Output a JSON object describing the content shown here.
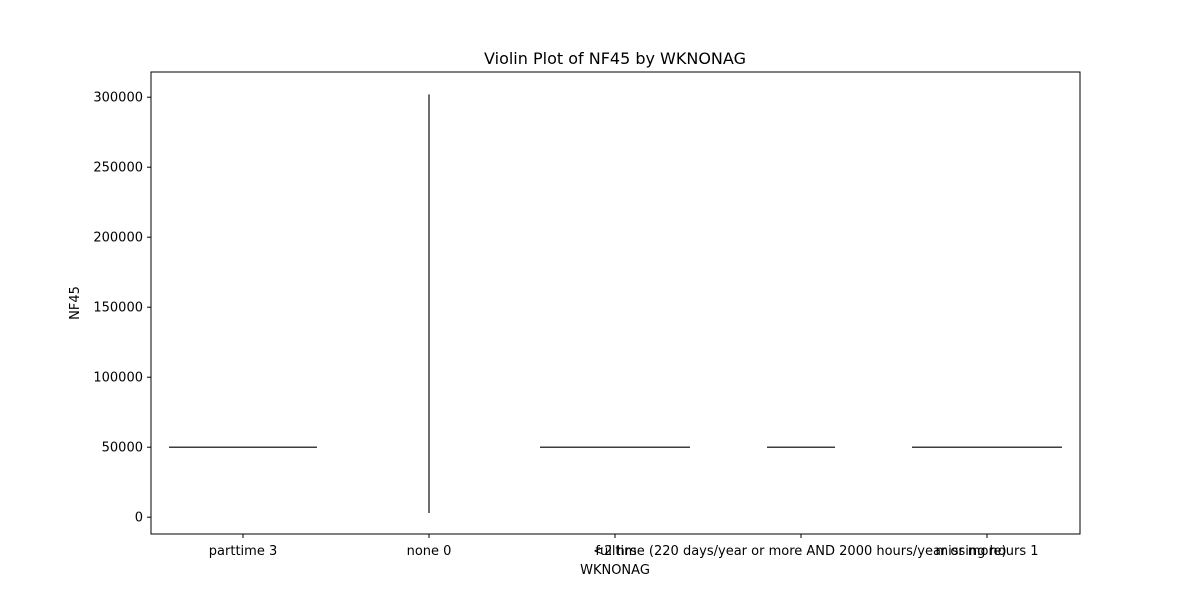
{
  "chart_data": {
    "type": "violin",
    "title": "Violin Plot of NF45 by WKNONAG",
    "xlabel": "WKNONAG",
    "ylabel": "NF45",
    "categories": [
      "parttime 3",
      "none 0",
      "<2 hrs",
      "fulltime (220 days/year or more AND 2000 hours/year or more)",
      "missing hours 1"
    ],
    "series": [
      {
        "category": "parttime 3",
        "min": 50000,
        "max": 50000
      },
      {
        "category": "none 0",
        "min": 3000,
        "max": 302000
      },
      {
        "category": "<2 hrs",
        "min": 50000,
        "max": 50000
      },
      {
        "category": "fulltime (220 days/year or more AND 2000 hours/year or more)",
        "min": 50000,
        "max": 50000
      },
      {
        "category": "missing hours 1",
        "min": 50000,
        "max": 50000
      }
    ],
    "yticks": [
      "0",
      "50000",
      "100000",
      "150000",
      "200000",
      "250000",
      "300000"
    ],
    "ytick_values": [
      0,
      50000,
      100000,
      150000,
      200000,
      250000,
      300000
    ],
    "ylim": [
      -12000,
      318000
    ],
    "grid": false,
    "colors": {
      "violin_edge": "#3d3d3d",
      "axes": "#000000"
    }
  }
}
